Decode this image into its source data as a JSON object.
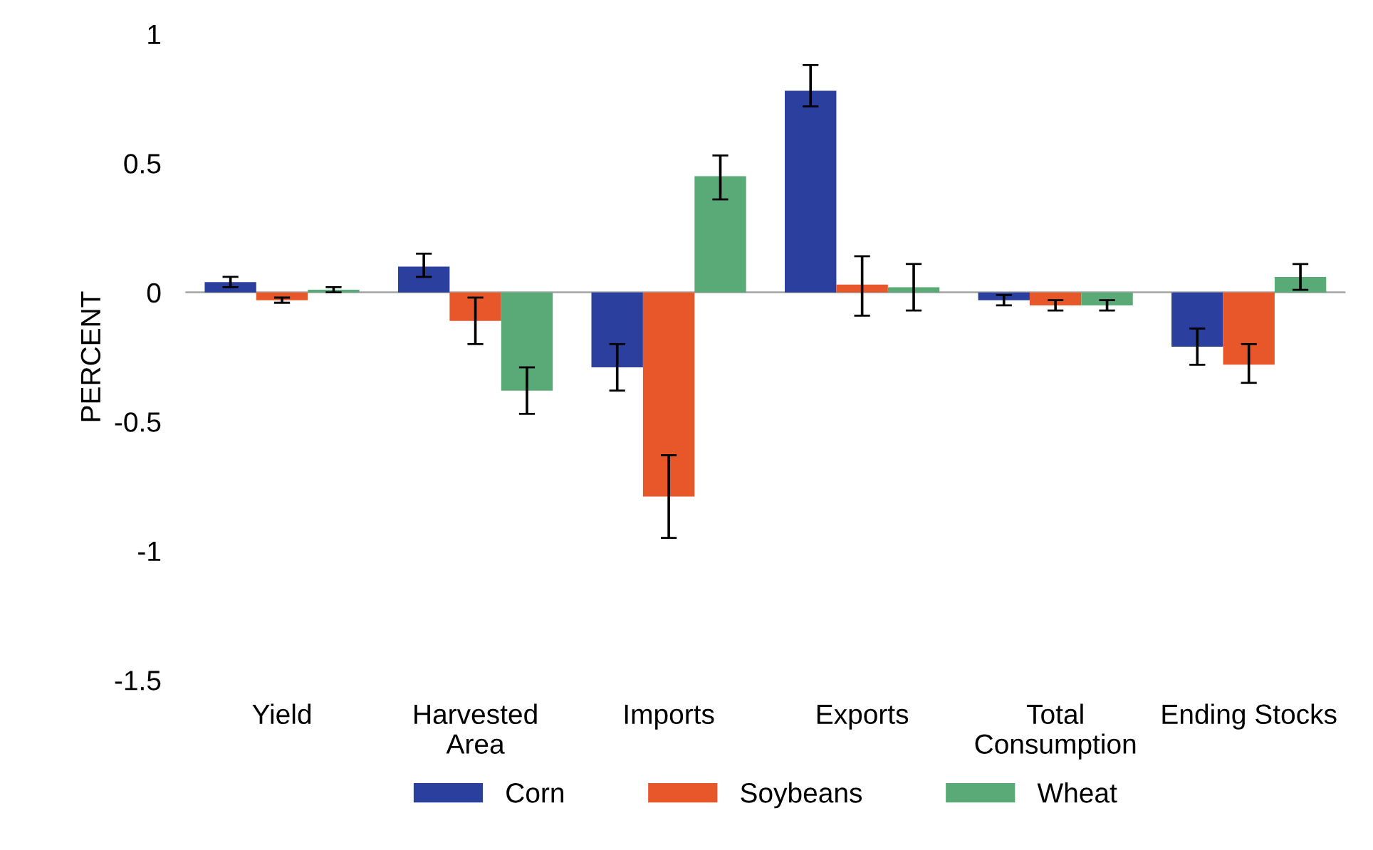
{
  "chart_data": {
    "type": "bar",
    "ylabel": "PERCENT",
    "categories": [
      "Yield",
      "Harvested\nArea",
      "Imports",
      "Exports",
      "Total\nConsumption",
      "Ending Stocks"
    ],
    "series": [
      {
        "name": "Corn",
        "color": "#2b3f9e",
        "values": [
          0.04,
          0.1,
          -0.29,
          0.78,
          -0.03,
          -0.21
        ],
        "errors": [
          0.02,
          [
            0.06,
            0.15
          ],
          [
            -0.38,
            -0.2
          ],
          [
            0.72,
            0.88
          ],
          0.02,
          [
            -0.28,
            -0.14
          ]
        ]
      },
      {
        "name": "Soybeans",
        "color": "#e8572a",
        "values": [
          -0.03,
          -0.11,
          -0.79,
          0.03,
          -0.05,
          -0.28
        ],
        "errors": [
          0.01,
          [
            -0.2,
            -0.02
          ],
          [
            -0.95,
            -0.63
          ],
          [
            -0.09,
            0.14
          ],
          0.02,
          [
            -0.35,
            -0.2
          ]
        ]
      },
      {
        "name": "Wheat",
        "color": "#5aaa78",
        "values": [
          0.01,
          -0.38,
          0.45,
          0.02,
          -0.05,
          0.06
        ],
        "errors": [
          0.01,
          [
            -0.47,
            -0.29
          ],
          [
            0.36,
            0.53
          ],
          [
            -0.07,
            0.11
          ],
          0.02,
          [
            0.01,
            0.11
          ]
        ]
      }
    ],
    "ylim": [
      -1.5,
      1
    ],
    "yticks": [
      -1.5,
      -1,
      -0.5,
      0,
      0.5,
      1
    ],
    "ref_lines": [
      {
        "axis": "y",
        "value": 0,
        "color": "#aaaaaa"
      }
    ],
    "grid": false,
    "legend": "bottom"
  }
}
